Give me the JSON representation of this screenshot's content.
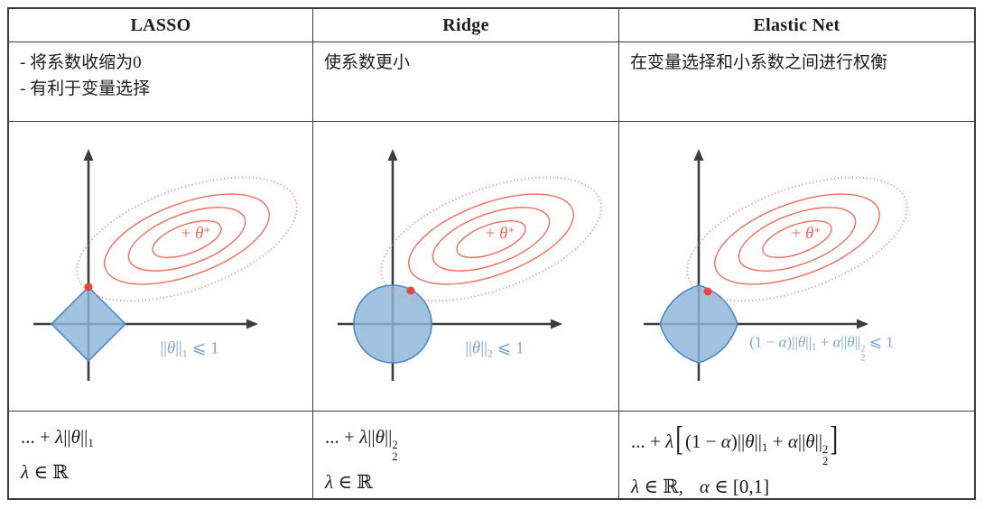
{
  "colors": {
    "contour_coral": "#f0705f",
    "contour_dotted": "#f29383",
    "tangent_dot_red": "#e5473e",
    "region_fill_blue": "#8cb6da",
    "region_stroke_blue": "#4e88c0",
    "label_blue": "#7fa6d2",
    "axis_gray": "#3d3d3d",
    "border_gray": "#3c3c3c"
  },
  "columns": [
    {
      "header": "LASSO",
      "desc": [
        "- 将系数收缩为0",
        "- 有利于变量选择"
      ],
      "theta_star": [
        {
          "t": "+ "
        },
        {
          "t": "θ",
          "c": "i"
        },
        {
          "t": "∗",
          "c": "sup"
        }
      ],
      "constraint_label": [
        {
          "t": "||"
        },
        {
          "t": "θ",
          "c": "i"
        },
        {
          "t": "||"
        },
        {
          "t": "1",
          "c": "sub"
        },
        {
          "t": " ⩽ 1"
        }
      ],
      "formula_line": [
        {
          "t": "... + "
        },
        {
          "t": "λ",
          "c": "i"
        },
        {
          "t": "||"
        },
        {
          "t": "θ",
          "c": "i"
        },
        {
          "t": "||"
        },
        {
          "t": "1",
          "c": "sub"
        }
      ],
      "domain_line": [
        {
          "t": "λ",
          "c": "i"
        },
        {
          "t": " ∈ ℝ"
        }
      ]
    },
    {
      "header": "Ridge",
      "desc": [
        "使系数更小"
      ],
      "theta_star": [
        {
          "t": "+ "
        },
        {
          "t": "θ",
          "c": "i"
        },
        {
          "t": "∗",
          "c": "sup"
        }
      ],
      "constraint_label": [
        {
          "t": "||"
        },
        {
          "t": "θ",
          "c": "i"
        },
        {
          "t": "||"
        },
        {
          "t": "2",
          "c": "sub"
        },
        {
          "t": " ⩽ 1"
        }
      ],
      "formula_line": [
        {
          "t": "... + "
        },
        {
          "t": "λ",
          "c": "i"
        },
        {
          "t": "||"
        },
        {
          "t": "θ",
          "c": "i"
        },
        {
          "t": "||"
        },
        {
          "sup": "2",
          "sub": "2",
          "c": "ss"
        }
      ],
      "domain_line": [
        {
          "t": "λ",
          "c": "i"
        },
        {
          "t": " ∈ ℝ"
        }
      ]
    },
    {
      "header": "Elastic Net",
      "desc": [
        "在变量选择和小系数之间进行权衡"
      ],
      "theta_star": [
        {
          "t": "+ "
        },
        {
          "t": "θ",
          "c": "i"
        },
        {
          "t": "∗",
          "c": "sup"
        }
      ],
      "constraint_label": [
        {
          "t": "(1 − "
        },
        {
          "t": "α",
          "c": "i"
        },
        {
          "t": ")||"
        },
        {
          "t": "θ",
          "c": "i"
        },
        {
          "t": "||"
        },
        {
          "t": "1",
          "c": "sub"
        },
        {
          "t": " + "
        },
        {
          "t": "α",
          "c": "i"
        },
        {
          "t": "||"
        },
        {
          "t": "θ",
          "c": "i"
        },
        {
          "t": "||"
        },
        {
          "sup": "2",
          "sub": "2",
          "c": "ss"
        },
        {
          "t": " ⩽ 1"
        }
      ],
      "formula_line": [
        {
          "t": "... + "
        },
        {
          "t": "λ",
          "c": "i"
        },
        {
          "t": "[",
          "c": "br"
        },
        {
          "t": "(1 − "
        },
        {
          "t": "α",
          "c": "i"
        },
        {
          "t": ")||"
        },
        {
          "t": "θ",
          "c": "i"
        },
        {
          "t": "||"
        },
        {
          "t": "1",
          "c": "sub"
        },
        {
          "t": " + "
        },
        {
          "t": "α",
          "c": "i"
        },
        {
          "t": "||"
        },
        {
          "t": "θ",
          "c": "i"
        },
        {
          "t": "||"
        },
        {
          "sup": "2",
          "sub": "2",
          "c": "ss"
        },
        {
          "t": "]",
          "c": "br"
        }
      ],
      "domain_line": [
        {
          "t": "λ",
          "c": "i"
        },
        {
          "t": " ∈ ℝ,"
        },
        {
          "t": "α",
          "c": "i gap"
        },
        {
          "t": " ∈ [0,1]"
        }
      ]
    }
  ]
}
